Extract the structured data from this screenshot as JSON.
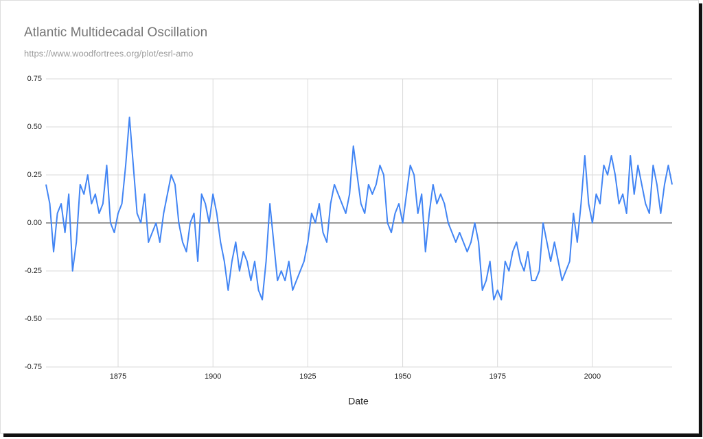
{
  "chart_data": {
    "type": "line",
    "title": "Atlantic Multidecadal Oscillation",
    "subtitle": "https://www.woodfortrees.org/plot/esrl-amo",
    "x_label": "Date",
    "color": "#4285f4",
    "grid": true,
    "xlim": [
      1856,
      2021
    ],
    "ylim": [
      -0.75,
      0.75
    ],
    "xticks": [
      1875,
      1900,
      1925,
      1950,
      1975,
      2000
    ],
    "yticks": [
      {
        "value": -0.75,
        "label": "-0.75"
      },
      {
        "value": -0.5,
        "label": "-0.50"
      },
      {
        "value": -0.25,
        "label": "-0.25"
      },
      {
        "value": 0,
        "label": "0.00"
      },
      {
        "value": 0.25,
        "label": "0.25"
      },
      {
        "value": 0.5,
        "label": "0.50"
      },
      {
        "value": 0.75,
        "label": "0.75"
      }
    ],
    "x": [
      1856,
      1857,
      1858,
      1859,
      1860,
      1861,
      1862,
      1863,
      1864,
      1865,
      1866,
      1867,
      1868,
      1869,
      1870,
      1871,
      1872,
      1873,
      1874,
      1875,
      1876,
      1877,
      1878,
      1879,
      1880,
      1881,
      1882,
      1883,
      1884,
      1885,
      1886,
      1887,
      1888,
      1889,
      1890,
      1891,
      1892,
      1893,
      1894,
      1895,
      1896,
      1897,
      1898,
      1899,
      1900,
      1901,
      1902,
      1903,
      1904,
      1905,
      1906,
      1907,
      1908,
      1909,
      1910,
      1911,
      1912,
      1913,
      1914,
      1915,
      1916,
      1917,
      1918,
      1919,
      1920,
      1921,
      1922,
      1923,
      1924,
      1925,
      1926,
      1927,
      1928,
      1929,
      1930,
      1931,
      1932,
      1933,
      1934,
      1935,
      1936,
      1937,
      1938,
      1939,
      1940,
      1941,
      1942,
      1943,
      1944,
      1945,
      1946,
      1947,
      1948,
      1949,
      1950,
      1951,
      1952,
      1953,
      1954,
      1955,
      1956,
      1957,
      1958,
      1959,
      1960,
      1961,
      1962,
      1963,
      1964,
      1965,
      1966,
      1967,
      1968,
      1969,
      1970,
      1971,
      1972,
      1973,
      1974,
      1975,
      1976,
      1977,
      1978,
      1979,
      1980,
      1981,
      1982,
      1983,
      1984,
      1985,
      1986,
      1987,
      1988,
      1989,
      1990,
      1991,
      1992,
      1993,
      1994,
      1995,
      1996,
      1997,
      1998,
      1999,
      2000,
      2001,
      2002,
      2003,
      2004,
      2005,
      2006,
      2007,
      2008,
      2009,
      2010,
      2011,
      2012,
      2013,
      2014,
      2015,
      2016,
      2017,
      2018,
      2019,
      2020,
      2021
    ],
    "values": [
      0.2,
      0.1,
      -0.15,
      0.05,
      0.1,
      -0.05,
      0.15,
      -0.25,
      -0.1,
      0.2,
      0.15,
      0.25,
      0.1,
      0.15,
      0.05,
      0.1,
      0.3,
      0.0,
      -0.05,
      0.05,
      0.1,
      0.3,
      0.55,
      0.3,
      0.05,
      0.0,
      0.15,
      -0.1,
      -0.05,
      0.0,
      -0.1,
      0.05,
      0.15,
      0.25,
      0.2,
      0.0,
      -0.1,
      -0.15,
      0.0,
      0.05,
      -0.2,
      0.15,
      0.1,
      0.0,
      0.15,
      0.05,
      -0.1,
      -0.2,
      -0.35,
      -0.2,
      -0.1,
      -0.25,
      -0.15,
      -0.2,
      -0.3,
      -0.2,
      -0.35,
      -0.4,
      -0.2,
      0.1,
      -0.1,
      -0.3,
      -0.25,
      -0.3,
      -0.2,
      -0.35,
      -0.3,
      -0.25,
      -0.2,
      -0.1,
      0.05,
      0.0,
      0.1,
      -0.05,
      -0.1,
      0.1,
      0.2,
      0.15,
      0.1,
      0.05,
      0.15,
      0.4,
      0.25,
      0.1,
      0.05,
      0.2,
      0.15,
      0.2,
      0.3,
      0.25,
      0.0,
      -0.05,
      0.05,
      0.1,
      0.0,
      0.15,
      0.3,
      0.25,
      0.05,
      0.15,
      -0.15,
      0.05,
      0.2,
      0.1,
      0.15,
      0.1,
      0.0,
      -0.05,
      -0.1,
      -0.05,
      -0.1,
      -0.15,
      -0.1,
      0.0,
      -0.1,
      -0.35,
      -0.3,
      -0.2,
      -0.4,
      -0.35,
      -0.4,
      -0.2,
      -0.25,
      -0.15,
      -0.1,
      -0.2,
      -0.25,
      -0.15,
      -0.3,
      -0.3,
      -0.25,
      0.0,
      -0.1,
      -0.2,
      -0.1,
      -0.2,
      -0.3,
      -0.25,
      -0.2,
      0.05,
      -0.1,
      0.1,
      0.35,
      0.1,
      0.0,
      0.15,
      0.1,
      0.3,
      0.25,
      0.35,
      0.25,
      0.1,
      0.15,
      0.05,
      0.35,
      0.15,
      0.3,
      0.2,
      0.1,
      0.05,
      0.3,
      0.2,
      0.05,
      0.2,
      0.3,
      0.2
    ]
  }
}
